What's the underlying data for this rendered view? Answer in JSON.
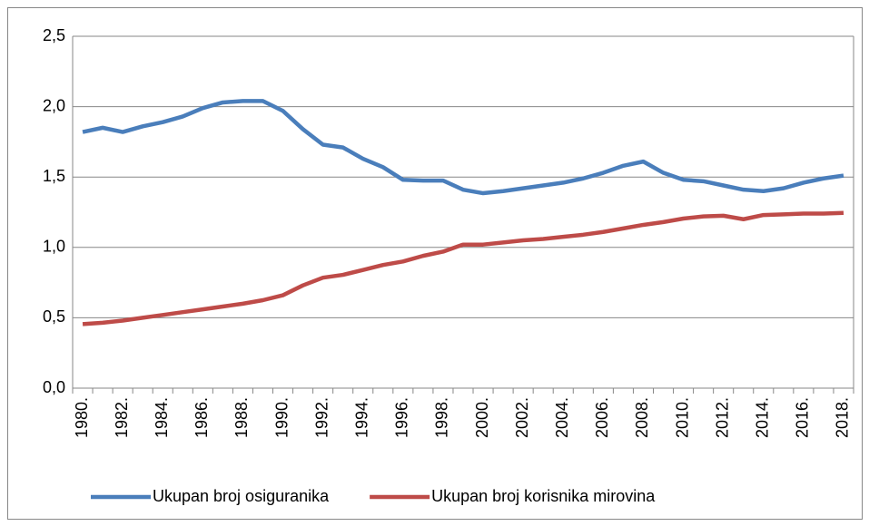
{
  "chart_data": {
    "type": "line",
    "categories": [
      "1980.",
      null,
      "1982.",
      null,
      "1984.",
      null,
      "1986.",
      null,
      "1988.",
      null,
      "1990.",
      null,
      "1992.",
      null,
      "1994.",
      null,
      "1996.",
      null,
      "1998.",
      null,
      "2000.",
      null,
      "2002.",
      null,
      "2004.",
      null,
      "2006.",
      null,
      "2008.",
      null,
      "2010.",
      null,
      "2012.",
      null,
      "2014.",
      null,
      "2016.",
      null,
      "2018."
    ],
    "series": [
      {
        "name": "Ukupan broj osiguranika",
        "color": "#4a7ebb",
        "values": [
          1.82,
          1.85,
          1.82,
          1.86,
          1.89,
          1.93,
          1.99,
          2.03,
          2.04,
          2.04,
          1.97,
          1.84,
          1.73,
          1.71,
          1.63,
          1.57,
          1.48,
          1.475,
          1.475,
          1.41,
          1.385,
          1.4,
          1.42,
          1.44,
          1.46,
          1.49,
          1.53,
          1.58,
          1.61,
          1.53,
          1.48,
          1.47,
          1.44,
          1.41,
          1.4,
          1.42,
          1.46,
          1.49,
          1.51
        ]
      },
      {
        "name": "Ukupan broj korisnika mirovina",
        "color": "#be4b48",
        "values": [
          0.455,
          0.465,
          0.48,
          0.5,
          0.52,
          0.54,
          0.56,
          0.58,
          0.6,
          0.625,
          0.66,
          0.73,
          0.785,
          0.805,
          0.84,
          0.875,
          0.9,
          0.94,
          0.97,
          1.02,
          1.02,
          1.035,
          1.05,
          1.06,
          1.075,
          1.09,
          1.11,
          1.135,
          1.16,
          1.18,
          1.205,
          1.22,
          1.225,
          1.2,
          1.23,
          1.235,
          1.24,
          1.24,
          1.245
        ]
      }
    ],
    "ylim": [
      0,
      2.5
    ],
    "yticks": [
      {
        "value": 0,
        "label": "0,0"
      },
      {
        "value": 0.5,
        "label": "0,5"
      },
      {
        "value": 1,
        "label": "1,0"
      },
      {
        "value": 1.5,
        "label": "1,5"
      },
      {
        "value": 2,
        "label": "2,0"
      },
      {
        "value": 2.5,
        "label": "2,5"
      }
    ],
    "grid": true,
    "legend": "bottom"
  }
}
